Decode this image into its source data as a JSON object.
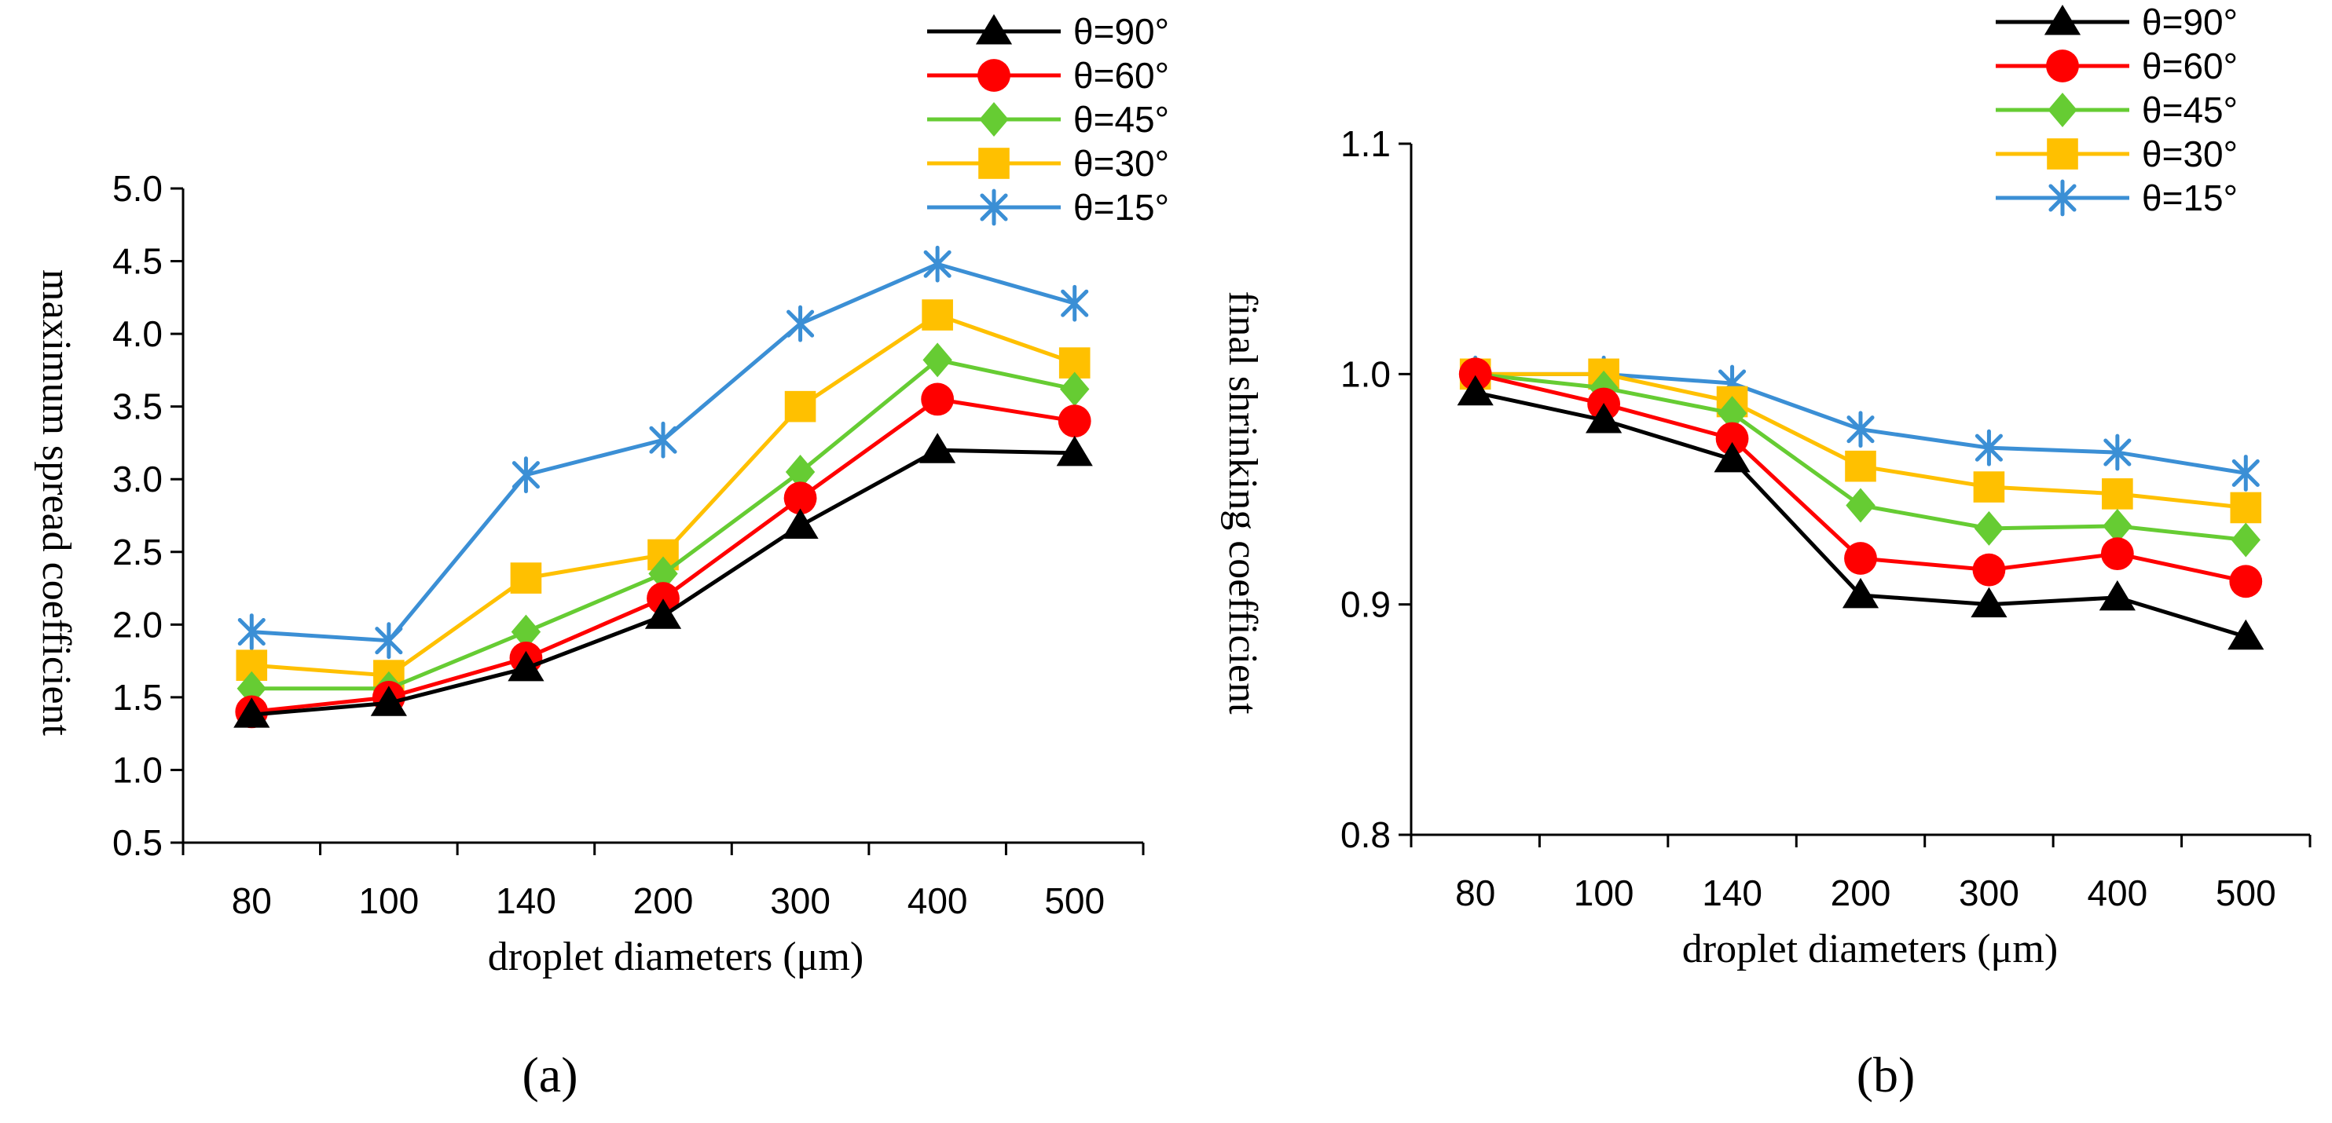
{
  "chart_data": [
    {
      "type": "line",
      "panel_label": "(a)",
      "categories": [
        "80",
        "100",
        "140",
        "200",
        "300",
        "400",
        "500"
      ],
      "xlabel": "droplet diameters (μm)",
      "ylabel": "maximum spread coefficient",
      "ylim": [
        0.5,
        5.0
      ],
      "yticks": [
        "0.5",
        "1.0",
        "1.5",
        "2.0",
        "2.5",
        "3.0",
        "3.5",
        "4.0",
        "4.5",
        "5.0"
      ],
      "legend_position": "top-right",
      "grid": false,
      "series": [
        {
          "name": "θ=90°",
          "color": "#000000",
          "marker": "triangle",
          "values": [
            1.38,
            1.46,
            1.7,
            2.06,
            2.68,
            3.2,
            3.18
          ]
        },
        {
          "name": "θ=60°",
          "color": "#ff0000",
          "marker": "circle",
          "values": [
            1.4,
            1.5,
            1.77,
            2.18,
            2.87,
            3.55,
            3.4
          ]
        },
        {
          "name": "θ=45°",
          "color": "#66cc33",
          "marker": "diamond",
          "values": [
            1.56,
            1.56,
            1.95,
            2.35,
            3.05,
            3.82,
            3.62
          ]
        },
        {
          "name": "θ=30°",
          "color": "#ffc000",
          "marker": "square",
          "values": [
            1.72,
            1.65,
            2.32,
            2.48,
            3.5,
            4.13,
            3.8
          ]
        },
        {
          "name": "θ=15°",
          "color": "#3b8fd5",
          "marker": "asterisk",
          "values": [
            1.95,
            1.89,
            3.03,
            3.27,
            4.07,
            4.48,
            4.21
          ]
        }
      ]
    },
    {
      "type": "line",
      "panel_label": "(b)",
      "categories": [
        "80",
        "100",
        "140",
        "200",
        "300",
        "400",
        "500"
      ],
      "xlabel": "droplet diameters (μm)",
      "ylabel": "final shrinking coefficient",
      "ylim": [
        0.8,
        1.1
      ],
      "yticks": [
        "0.8",
        "0.9",
        "1.0",
        "1.1"
      ],
      "legend_position": "top-right",
      "grid": false,
      "series": [
        {
          "name": "θ=90°",
          "color": "#000000",
          "marker": "triangle",
          "values": [
            0.992,
            0.98,
            0.963,
            0.904,
            0.9,
            0.903,
            0.886
          ]
        },
        {
          "name": "θ=60°",
          "color": "#ff0000",
          "marker": "circle",
          "values": [
            1.0,
            0.987,
            0.972,
            0.92,
            0.915,
            0.922,
            0.91
          ]
        },
        {
          "name": "θ=45°",
          "color": "#66cc33",
          "marker": "diamond",
          "values": [
            1.0,
            0.994,
            0.983,
            0.943,
            0.933,
            0.934,
            0.928
          ]
        },
        {
          "name": "θ=30°",
          "color": "#ffc000",
          "marker": "square",
          "values": [
            1.0,
            1.0,
            0.988,
            0.96,
            0.951,
            0.948,
            0.942
          ]
        },
        {
          "name": "θ=15°",
          "color": "#3b8fd5",
          "marker": "asterisk",
          "values": [
            1.0,
            1.0,
            0.996,
            0.976,
            0.968,
            0.966,
            0.957
          ]
        }
      ]
    }
  ]
}
